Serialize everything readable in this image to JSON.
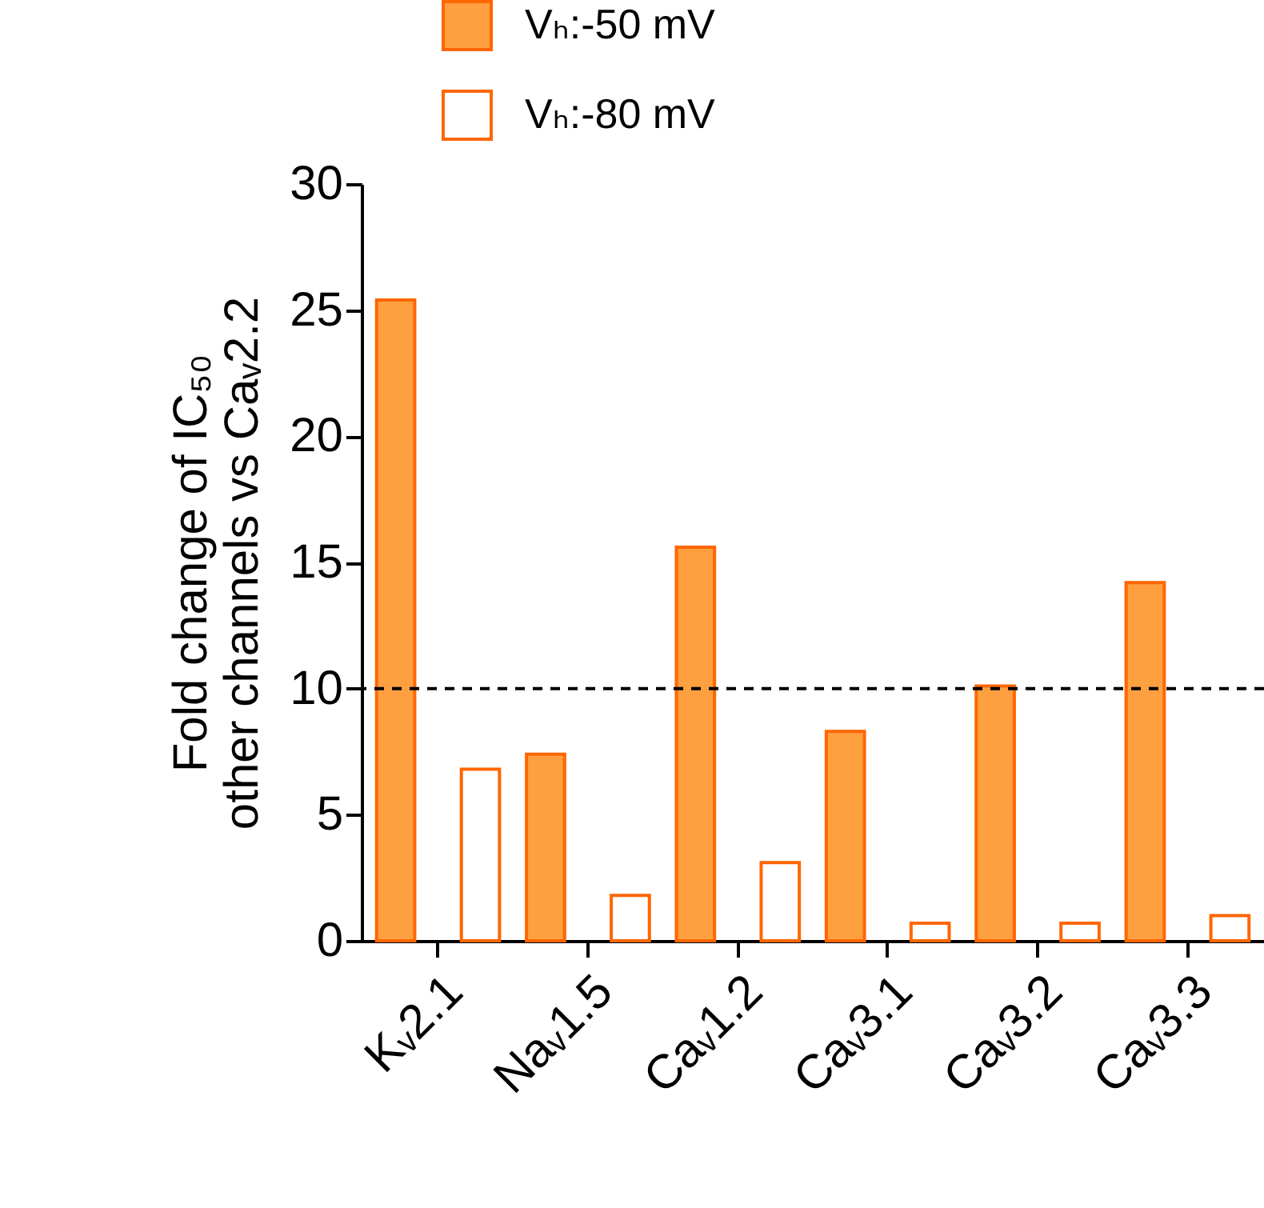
{
  "chart_data": {
    "type": "bar",
    "ylabel": "Fold change of IC₅₀\nother channels vs Caᵥ2.2",
    "categories": [
      "Kᵥ2.1",
      "Naᵥ1.5",
      "Caᵥ1.2",
      "Caᵥ3.1",
      "Caᵥ3.2",
      "Caᵥ3.3"
    ],
    "series": [
      {
        "name": "Vₕ:-50 mV",
        "color": "#ffa040",
        "values": [
          25.4,
          7.4,
          15.6,
          8.3,
          10.1,
          14.2
        ]
      },
      {
        "name": "Vₕ:-80 mV",
        "color": "#ffffff",
        "values": [
          6.8,
          1.8,
          3.1,
          0.7,
          0.7,
          1.0
        ]
      }
    ],
    "ylim": [
      0,
      30
    ],
    "yticks": [
      0,
      5,
      10,
      15,
      20,
      25,
      30
    ],
    "grid": false,
    "legend": "top",
    "ref_lines": [
      {
        "axis": "y",
        "value": 10,
        "line_style": "dashed",
        "color": "#000000"
      }
    ]
  }
}
